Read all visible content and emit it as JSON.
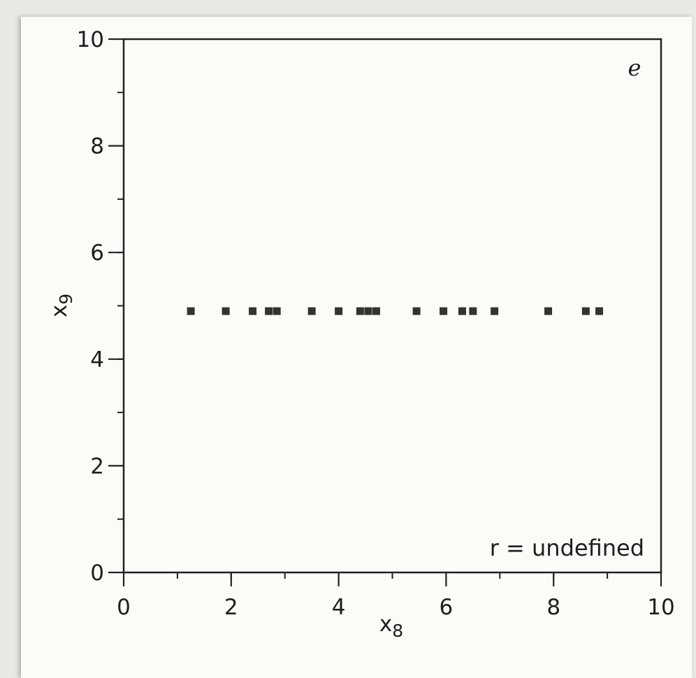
{
  "chart_data": {
    "type": "scatter",
    "panel_label": "e",
    "xlabel": "x",
    "xlabel_sub": "8",
    "ylabel": "x",
    "ylabel_sub": "9",
    "xlim": [
      0,
      10
    ],
    "ylim": [
      0,
      10
    ],
    "xticks": [
      0,
      2,
      4,
      6,
      8,
      10
    ],
    "yticks": [
      0,
      2,
      4,
      6,
      8,
      10
    ],
    "minor_tick_step": 1,
    "grid": false,
    "annotation": "r = undefined",
    "marker": "square",
    "marker_color": "#333333",
    "points": [
      {
        "x": 1.25,
        "y": 4.9
      },
      {
        "x": 1.9,
        "y": 4.9
      },
      {
        "x": 2.4,
        "y": 4.9
      },
      {
        "x": 2.7,
        "y": 4.9
      },
      {
        "x": 2.85,
        "y": 4.9
      },
      {
        "x": 3.5,
        "y": 4.9
      },
      {
        "x": 4.0,
        "y": 4.9
      },
      {
        "x": 4.4,
        "y": 4.9
      },
      {
        "x": 4.55,
        "y": 4.9
      },
      {
        "x": 4.7,
        "y": 4.9
      },
      {
        "x": 5.45,
        "y": 4.9
      },
      {
        "x": 5.95,
        "y": 4.9
      },
      {
        "x": 6.3,
        "y": 4.9
      },
      {
        "x": 6.5,
        "y": 4.9
      },
      {
        "x": 6.9,
        "y": 4.9
      },
      {
        "x": 7.9,
        "y": 4.9
      },
      {
        "x": 8.6,
        "y": 4.9
      },
      {
        "x": 8.85,
        "y": 4.9
      }
    ]
  }
}
